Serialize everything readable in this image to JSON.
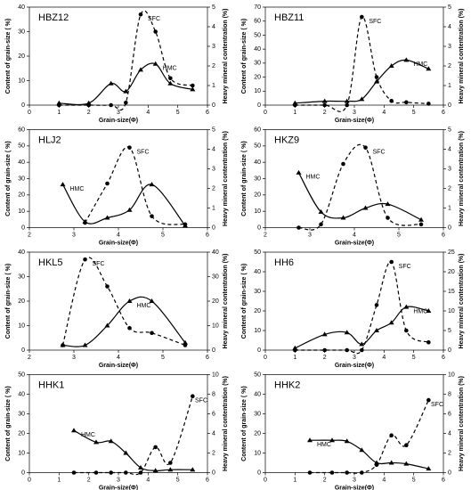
{
  "chart_data": [
    {
      "type": "line",
      "title": "HBZ12",
      "xlabel": "Grain-size(Φ)",
      "ylabel": "Content of grain-size ( %)",
      "y2label": "Heavy mineral contentration (%)",
      "x": [
        1,
        2,
        2.75,
        3.25,
        3.75,
        4.25,
        4.75,
        5.5
      ],
      "xlim": [
        0,
        6
      ],
      "xticks": [
        0,
        1,
        2,
        3,
        4,
        5,
        6
      ],
      "ylim": [
        0,
        40
      ],
      "yticks": [
        0,
        10,
        20,
        30,
        40
      ],
      "y2lim": [
        0,
        5
      ],
      "y2ticks": [
        0,
        1,
        2,
        3,
        4,
        5
      ],
      "series": [
        {
          "name": "SFC",
          "color": "#000000",
          "style": "dashed",
          "marker": "circle",
          "values": [
            0,
            0,
            0,
            1,
            37,
            30,
            11,
            8
          ]
        },
        {
          "name": "HMC",
          "color": "#000000",
          "style": "solid",
          "marker": "triangle",
          "axis": "y2",
          "values": [
            0.1,
            0.1,
            1.1,
            0.7,
            1.8,
            2.1,
            1.1,
            0.8
          ]
        }
      ]
    },
    {
      "type": "line",
      "title": "HBZ11",
      "xlabel": "Grain-size(Φ)",
      "ylabel": "Content of grain-size ( %)",
      "y2label": "Heavy mineral contentration (%)",
      "x": [
        1,
        2,
        2.75,
        3.25,
        3.75,
        4.25,
        4.75,
        5.5
      ],
      "xlim": [
        0,
        6
      ],
      "xticks": [
        0,
        1,
        2,
        3,
        4,
        5,
        6
      ],
      "ylim": [
        0,
        70
      ],
      "yticks": [
        0,
        10,
        20,
        30,
        40,
        50,
        60,
        70
      ],
      "y2lim": [
        0,
        5
      ],
      "y2ticks": [
        0,
        1,
        2,
        3,
        4,
        5
      ],
      "series": [
        {
          "name": "SFC",
          "color": "#000000",
          "style": "dashed",
          "marker": "circle",
          "values": [
            0,
            0,
            0,
            63,
            20,
            3,
            2,
            1
          ]
        },
        {
          "name": "HMC",
          "color": "#000000",
          "style": "solid",
          "marker": "triangle",
          "axis": "y2",
          "values": [
            0.1,
            0.2,
            0.2,
            0.3,
            1.2,
            2.0,
            2.3,
            1.85
          ]
        }
      ]
    },
    {
      "type": "line",
      "title": "HLJ2",
      "xlabel": "Grain-size(Φ)",
      "ylabel": "Content of grain-size ( %)",
      "y2label": "Heavy mineral contentration (%)",
      "x": [
        2.75,
        3.25,
        3.75,
        4.25,
        4.75,
        5.5
      ],
      "xlim": [
        2,
        6
      ],
      "xticks": [
        2,
        3,
        4,
        5,
        6
      ],
      "ylim": [
        0,
        60
      ],
      "yticks": [
        0,
        10,
        20,
        30,
        40,
        50,
        60
      ],
      "y2lim": [
        0,
        5
      ],
      "y2ticks": [
        0,
        1,
        2,
        3,
        4,
        5
      ],
      "series": [
        {
          "name": "SFC",
          "color": "#000000",
          "style": "dashed",
          "marker": "circle",
          "values": [
            null,
            3,
            27,
            49,
            7,
            2
          ]
        },
        {
          "name": "HMC",
          "color": "#000000",
          "style": "solid",
          "marker": "triangle",
          "axis": "y2",
          "values": [
            2.2,
            0.3,
            0.5,
            0.9,
            2.2,
            0.1
          ]
        }
      ]
    },
    {
      "type": "line",
      "title": "HKZ9",
      "xlabel": "Grain-size(Φ)",
      "ylabel": "Content of grain-size ( %)",
      "y2label": "Heavy mineral contentration (%)",
      "x": [
        2.75,
        3.25,
        3.75,
        4.25,
        4.75,
        5.5
      ],
      "xlim": [
        2,
        6
      ],
      "xticks": [
        2,
        3,
        4,
        5,
        6
      ],
      "ylim": [
        0,
        60
      ],
      "yticks": [
        0,
        10,
        20,
        30,
        40,
        50,
        60
      ],
      "y2lim": [
        0,
        5
      ],
      "y2ticks": [
        0,
        1,
        2,
        3,
        4,
        5
      ],
      "series": [
        {
          "name": "SFC",
          "color": "#000000",
          "style": "dashed",
          "marker": "circle",
          "values": [
            0,
            2,
            39,
            49,
            6,
            2
          ]
        },
        {
          "name": "HMC",
          "color": "#000000",
          "style": "solid",
          "marker": "triangle",
          "axis": "y2",
          "values": [
            2.8,
            0.8,
            0.5,
            1.0,
            1.2,
            0.4
          ]
        }
      ]
    },
    {
      "type": "line",
      "title": "HKL5",
      "xlabel": "Grain-size(Φ)",
      "ylabel": "Content of grain-size ( %)",
      "y2label": "Heavy mineral contentration (%)",
      "x": [
        2.75,
        3.25,
        3.75,
        4.25,
        4.75,
        5.5
      ],
      "xlim": [
        2,
        6
      ],
      "xticks": [
        2,
        3,
        4,
        5,
        6
      ],
      "ylim": [
        0,
        40
      ],
      "yticks": [
        0,
        10,
        20,
        30,
        40
      ],
      "y2lim": [
        0,
        40
      ],
      "y2ticks": [
        0,
        10,
        20,
        30,
        40
      ],
      "series": [
        {
          "name": "SFC",
          "color": "#000000",
          "style": "dashed",
          "marker": "circle",
          "values": [
            2,
            37,
            26,
            9,
            7,
            2
          ]
        },
        {
          "name": "HMC",
          "color": "#000000",
          "style": "solid",
          "marker": "triangle",
          "axis": "y2",
          "values": [
            2,
            2,
            10,
            20,
            20,
            3
          ]
        }
      ]
    },
    {
      "type": "line",
      "title": "HH6",
      "xlabel": "Grain-size(Φ)",
      "ylabel": "Content of grain-size ( %)",
      "y2label": "Heavy mineral contentration (%)",
      "x": [
        1,
        2,
        2.75,
        3.25,
        3.75,
        4.25,
        4.75,
        5.5
      ],
      "xlim": [
        0,
        6
      ],
      "xticks": [
        0,
        1,
        2,
        3,
        4,
        5,
        6
      ],
      "ylim": [
        0,
        50
      ],
      "yticks": [
        0,
        10,
        20,
        30,
        40,
        50
      ],
      "y2lim": [
        0,
        25
      ],
      "y2ticks": [
        0,
        5,
        10,
        15,
        20,
        25
      ],
      "series": [
        {
          "name": "SFC",
          "color": "#000000",
          "style": "dashed",
          "marker": "circle",
          "values": [
            0,
            0,
            0,
            0,
            23,
            45,
            10,
            4
          ]
        },
        {
          "name": "HMC",
          "color": "#000000",
          "style": "solid",
          "marker": "triangle",
          "axis": "y2",
          "values": [
            0.5,
            4,
            4.5,
            1.5,
            5,
            7,
            11,
            10
          ]
        }
      ]
    },
    {
      "type": "line",
      "title": "HHK1",
      "xlabel": "Grain-size(Φ)",
      "ylabel": "Content of grain-size ( %)",
      "y2label": "Heavy mineral contentration (%)",
      "x": [
        1.5,
        2.25,
        2.75,
        3.25,
        3.75,
        4.25,
        4.75,
        5.5
      ],
      "xlim": [
        0,
        6
      ],
      "xticks": [
        0,
        1,
        2,
        3,
        4,
        5,
        6
      ],
      "ylim": [
        0,
        50
      ],
      "yticks": [
        0,
        10,
        20,
        30,
        40,
        50
      ],
      "y2lim": [
        0,
        10
      ],
      "y2ticks": [
        0,
        2,
        4,
        6,
        8,
        10
      ],
      "series": [
        {
          "name": "SFC",
          "color": "#000000",
          "style": "dashed",
          "marker": "circle",
          "values": [
            0,
            0,
            0,
            0,
            0,
            13,
            5,
            39
          ]
        },
        {
          "name": "HMC",
          "color": "#000000",
          "style": "solid",
          "marker": "triangle",
          "axis": "y2",
          "values": [
            4.3,
            3.1,
            3.2,
            2,
            0.5,
            0.2,
            0.3,
            0.3
          ]
        }
      ]
    },
    {
      "type": "line",
      "title": "HHK2",
      "xlabel": "Grain-size(Φ)",
      "ylabel": "Content of grain-size ( %)",
      "y2label": "Heavy mineral contentration (%)",
      "x": [
        1.5,
        2.25,
        2.75,
        3.25,
        3.75,
        4.25,
        4.75,
        5.5
      ],
      "xlim": [
        0,
        6
      ],
      "xticks": [
        0,
        1,
        2,
        3,
        4,
        5,
        6
      ],
      "ylim": [
        0,
        50
      ],
      "yticks": [
        0,
        10,
        20,
        30,
        40,
        50
      ],
      "y2lim": [
        0,
        10
      ],
      "y2ticks": [
        0,
        2,
        4,
        6,
        8,
        10
      ],
      "series": [
        {
          "name": "SFC",
          "color": "#000000",
          "style": "dashed",
          "marker": "circle",
          "values": [
            0,
            0,
            0,
            0,
            4,
            19,
            14,
            37
          ]
        },
        {
          "name": "HMC",
          "color": "#000000",
          "style": "solid",
          "marker": "triangle",
          "axis": "y2",
          "values": [
            3.3,
            3.3,
            3.2,
            2.3,
            1.0,
            1.0,
            0.9,
            0.4
          ]
        }
      ]
    }
  ]
}
